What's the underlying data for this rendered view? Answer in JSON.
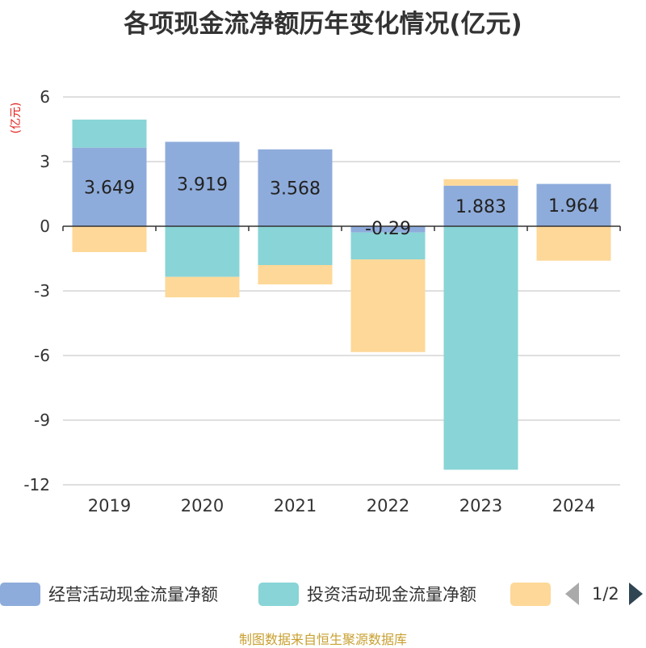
{
  "title": "各项现金流净额历年变化情况(亿元)",
  "source": "制图数据来自恒生聚源数据库",
  "legend": {
    "items": [
      {
        "label": "经营活动现金流量净额",
        "color": "#8eacdb"
      },
      {
        "label": "投资活动现金流量净额",
        "color": "#89d4d6"
      },
      {
        "label": "",
        "color": "#fdd898"
      }
    ],
    "page_text": "1/2"
  },
  "chart_data": {
    "type": "bar",
    "stacked": true,
    "title": "各项现金流净额历年变化情况(亿元)",
    "ylabel": "(亿元)",
    "ylim": [
      -12,
      6
    ],
    "yticks": [
      6,
      3,
      0,
      -3,
      -6,
      -9,
      -12
    ],
    "categories": [
      "2019",
      "2020",
      "2021",
      "2022",
      "2023",
      "2024"
    ],
    "series": [
      {
        "name": "经营活动现金流量净额",
        "color": "#8eacdb",
        "values": [
          3.649,
          3.919,
          3.568,
          -0.29,
          1.883,
          1.964
        ],
        "labels": [
          "3.649",
          "3.919",
          "3.568",
          "-0.29",
          "1.883",
          "1.964"
        ]
      },
      {
        "name": "投资活动现金流量净额",
        "color": "#89d4d6",
        "values": [
          1.3,
          -2.35,
          -1.8,
          -1.25,
          -11.3,
          0
        ]
      },
      {
        "name": "",
        "color": "#fdd898",
        "values": [
          -1.2,
          -0.95,
          -0.9,
          -4.3,
          0.3,
          -1.6
        ]
      }
    ]
  }
}
